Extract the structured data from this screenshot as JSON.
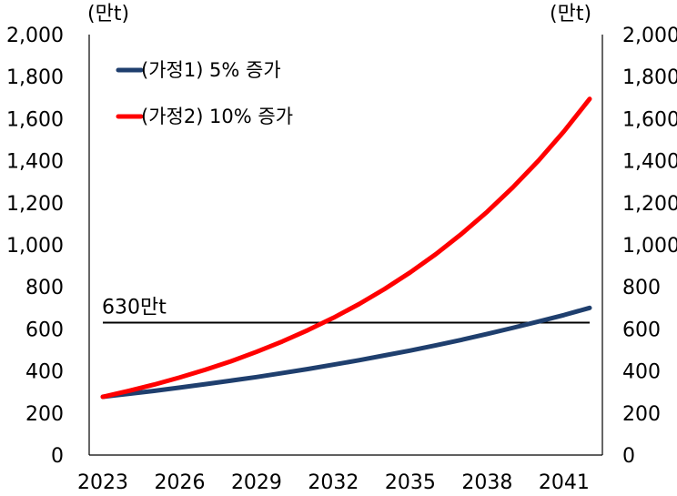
{
  "chart_data": {
    "type": "line",
    "left_unit": "(만t)",
    "right_unit": "(만t)",
    "ylim": [
      0,
      2000
    ],
    "yticks": [
      "0",
      "200",
      "400",
      "600",
      "800",
      "1,000",
      "1,200",
      "1,400",
      "1,600",
      "1,800",
      "2,000"
    ],
    "xlim": [
      2023,
      2042
    ],
    "xticks": [
      2023,
      2026,
      2029,
      2032,
      2035,
      2038,
      2041
    ],
    "xtick_labels": [
      "2023",
      "2026",
      "2029",
      "2032",
      "2035",
      "2038",
      "2041"
    ],
    "series": [
      {
        "name": "(가정1) 5% 증가",
        "color": "#1f3f6e",
        "x": [
          2023,
          2024,
          2025,
          2026,
          2027,
          2028,
          2029,
          2030,
          2031,
          2032,
          2033,
          2034,
          2035,
          2036,
          2037,
          2038,
          2039,
          2040,
          2041,
          2042
        ],
        "values": [
          277,
          291,
          305,
          321,
          337,
          354,
          371,
          390,
          409,
          430,
          451,
          474,
          497,
          522,
          548,
          576,
          605,
          635,
          666,
          700
        ]
      },
      {
        "name": "(가정2) 10% 증가",
        "color": "#ff0000",
        "x": [
          2023,
          2024,
          2025,
          2026,
          2027,
          2028,
          2029,
          2030,
          2031,
          2032,
          2033,
          2034,
          2035,
          2036,
          2037,
          2038,
          2039,
          2040,
          2041,
          2042
        ],
        "values": [
          277,
          305,
          335,
          369,
          406,
          446,
          491,
          540,
          594,
          653,
          718,
          790,
          869,
          956,
          1052,
          1157,
          1273,
          1400,
          1540,
          1694
        ]
      }
    ],
    "reference_line": {
      "value": 630,
      "label": "630만t",
      "color": "#000000"
    },
    "legend_position": "top-left",
    "grid": false
  }
}
